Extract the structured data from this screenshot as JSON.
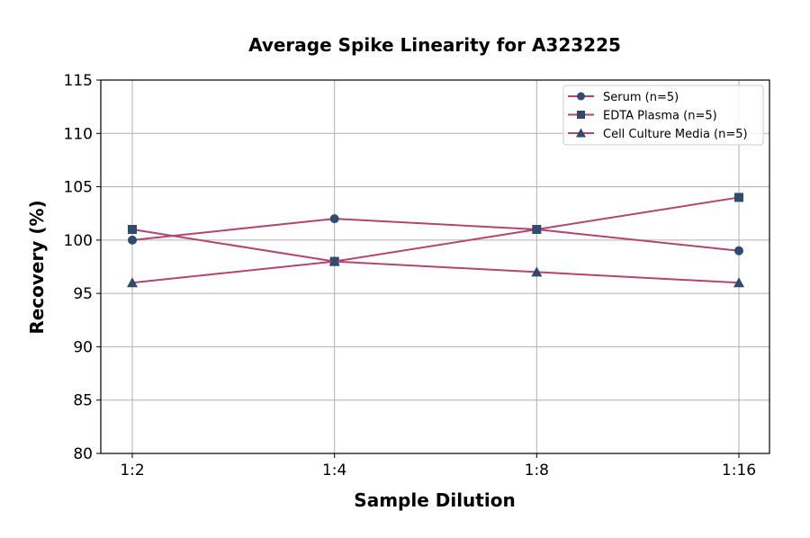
{
  "chart_data": {
    "type": "line",
    "title": "Average Spike Linearity for A323225",
    "xlabel": "Sample Dilution",
    "ylabel": "Recovery (%)",
    "categories": [
      "1:2",
      "1:4",
      "1:8",
      "1:16"
    ],
    "ylim": [
      80,
      115
    ],
    "yticks": [
      80,
      85,
      90,
      95,
      100,
      105,
      110,
      115
    ],
    "grid": true,
    "legend_position": "top-right",
    "line_color": "#b5446e",
    "marker_color": "#2f4b6e",
    "series": [
      {
        "name": "Serum (n=5)",
        "marker": "circle",
        "values": [
          100,
          102,
          101,
          99
        ]
      },
      {
        "name": "EDTA Plasma (n=5)",
        "marker": "square",
        "values": [
          101,
          98,
          101,
          104
        ]
      },
      {
        "name": "Cell Culture Media (n=5)",
        "marker": "triangle",
        "values": [
          96,
          98,
          97,
          96
        ]
      }
    ]
  }
}
